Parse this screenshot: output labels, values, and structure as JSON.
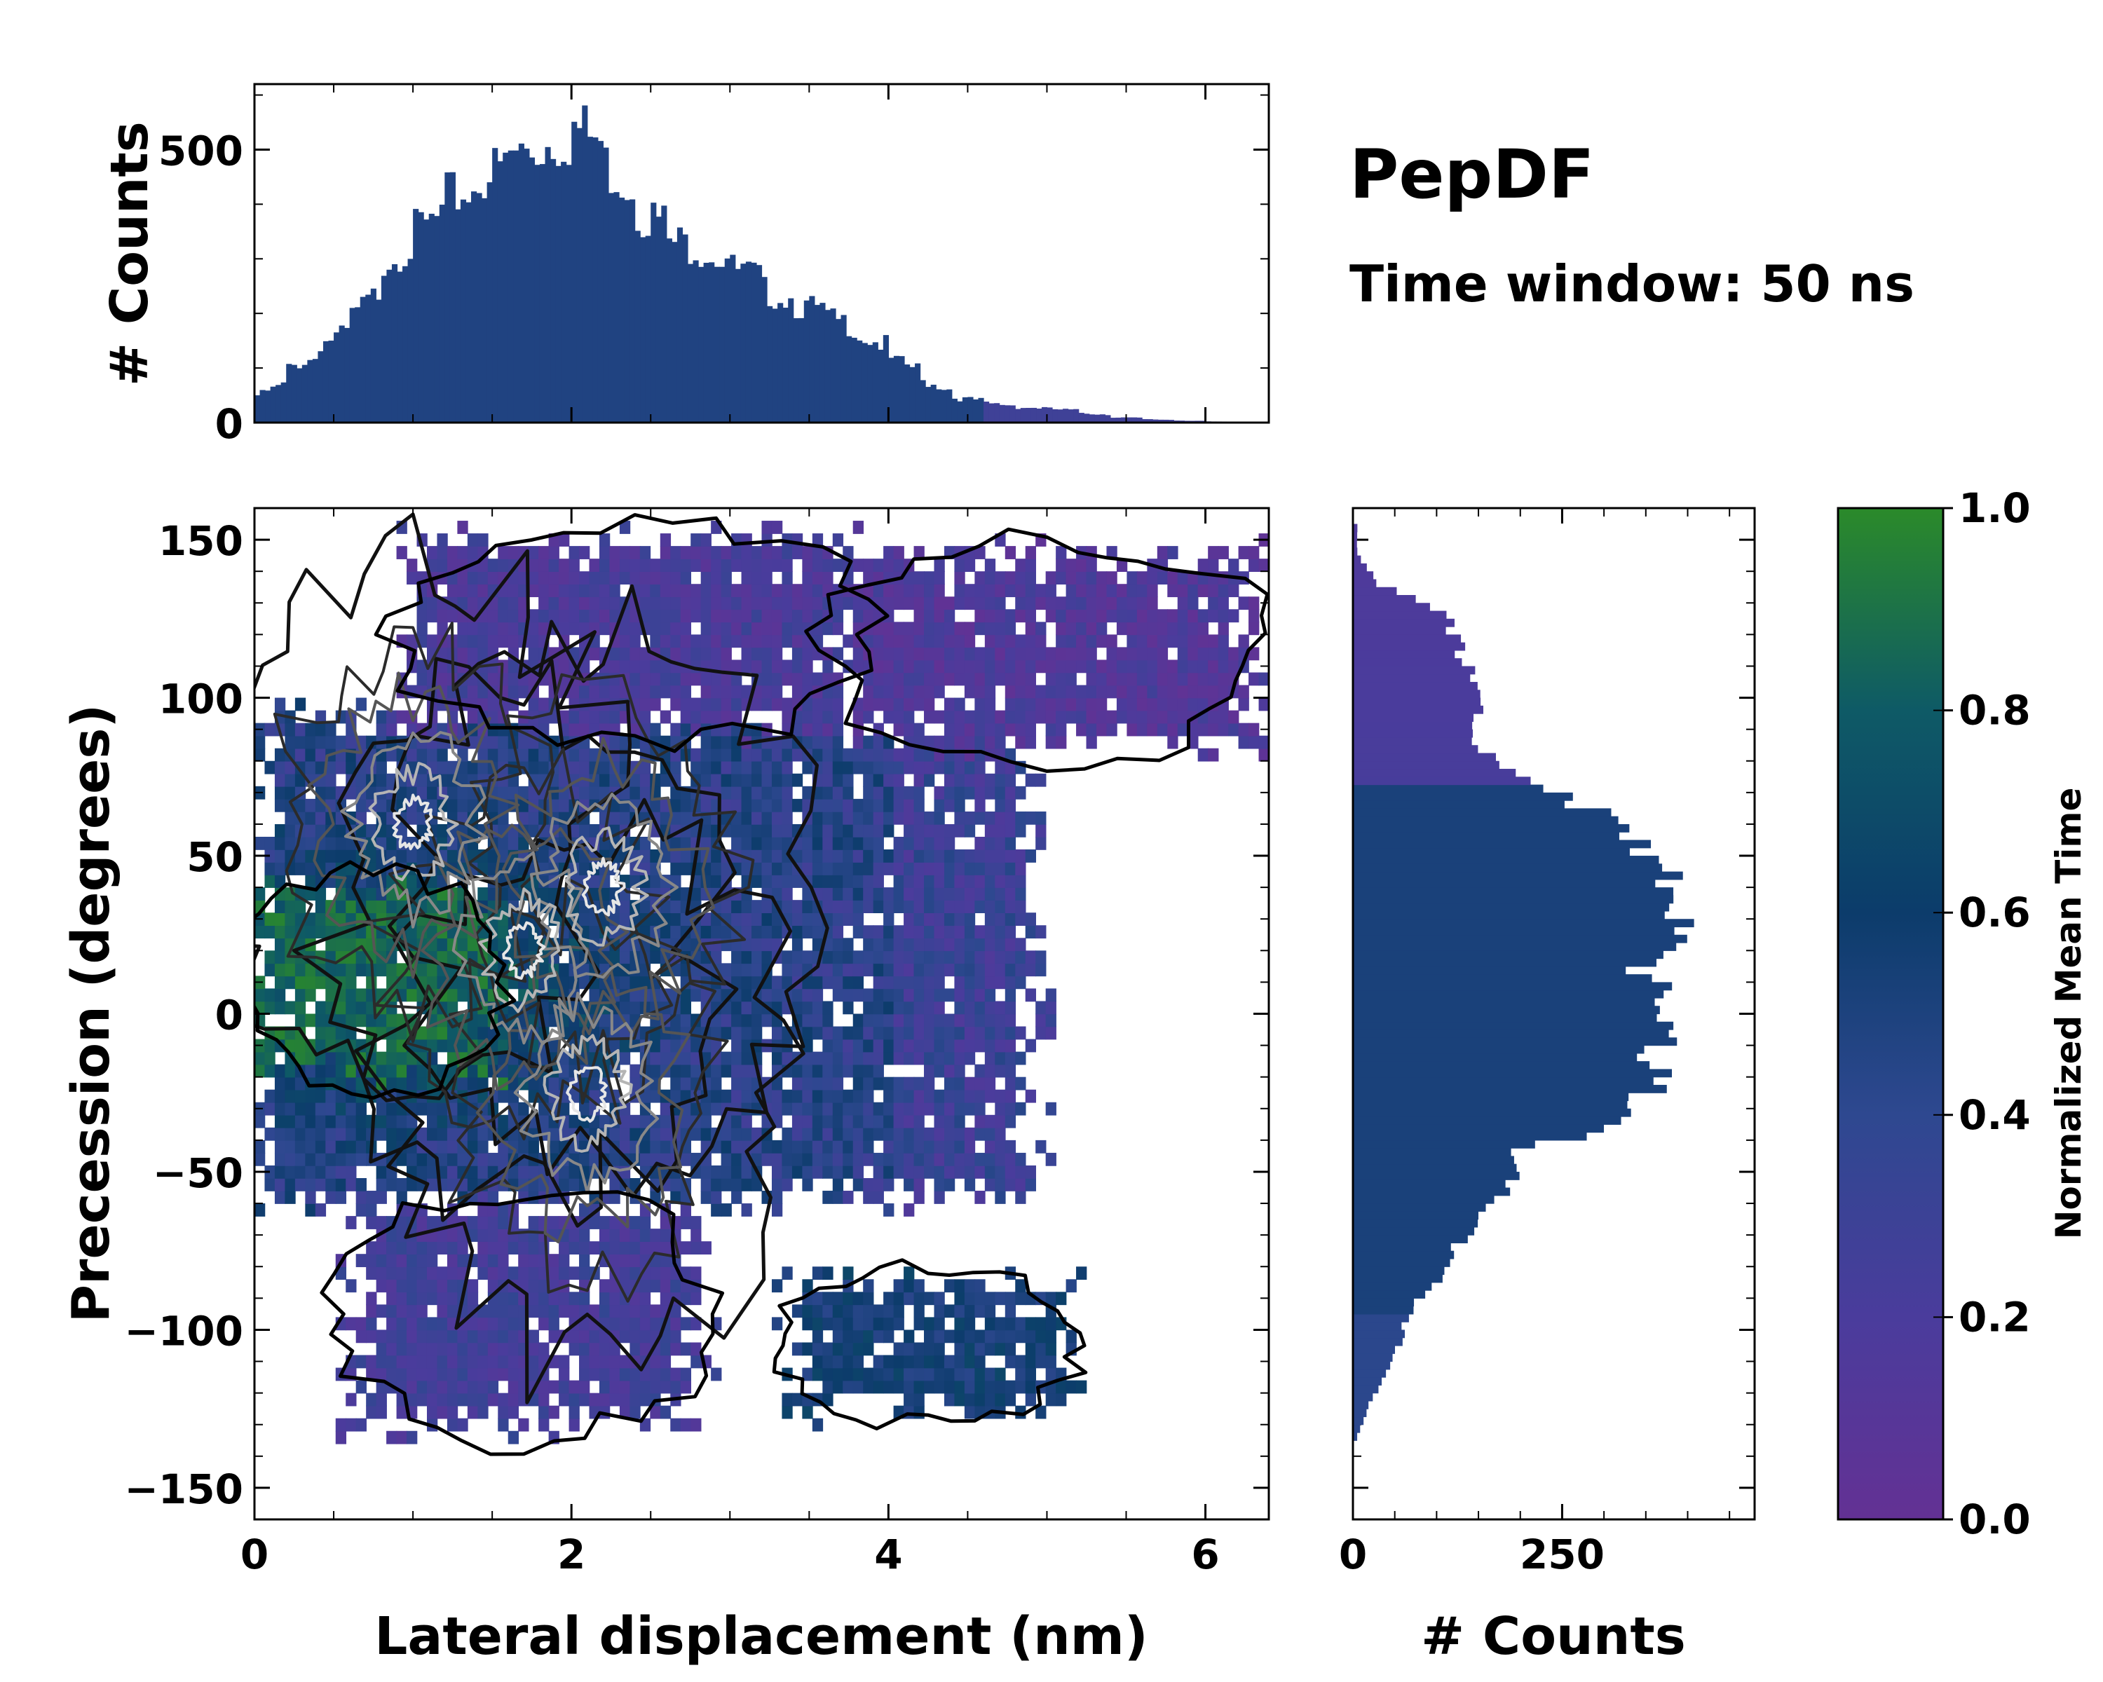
{
  "chart_data": {
    "type": "joint-heatmap-with-marginal-histograms",
    "title": "PepDF",
    "subtitle": "Time window: 50 ns",
    "main": {
      "type": "heatmap",
      "xlabel": "Lateral displacement (nm)",
      "ylabel": "Precession (degrees)",
      "xlim": [
        0,
        6.4
      ],
      "ylim": [
        -160,
        160
      ],
      "xticks": [
        0,
        2,
        4,
        6
      ],
      "xtick_labels": [
        "0",
        "2",
        "4",
        "6"
      ],
      "yticks": [
        -150,
        -100,
        -50,
        0,
        50,
        100,
        150
      ],
      "ytick_labels": [
        "−150",
        "−100",
        "−50",
        "0",
        "50",
        "100",
        "150"
      ],
      "regions": [
        {
          "x": [
            0.0,
            4.9
          ],
          "y": [
            -60,
            95
          ],
          "mean_time": 0.5,
          "note": "dense core"
        },
        {
          "x": [
            0.0,
            1.5
          ],
          "y": [
            -20,
            40
          ],
          "mean_time": 0.85,
          "note": "green early-region"
        },
        {
          "x": [
            1.0,
            3.8
          ],
          "y": [
            90,
            150
          ],
          "mean_time": 0.2,
          "note": "purple top lobe"
        },
        {
          "x": [
            3.7,
            6.3
          ],
          "y": [
            85,
            145
          ],
          "mean_time": 0.15,
          "note": "purple top-right lobe"
        },
        {
          "x": [
            0.6,
            2.8
          ],
          "y": [
            -130,
            -60
          ],
          "mean_time": 0.25,
          "note": "purple bottom lobe"
        },
        {
          "x": [
            3.4,
            5.1
          ],
          "y": [
            -125,
            -85
          ],
          "mean_time": 0.55,
          "note": "teal bottom-right lobe"
        }
      ],
      "density_peaks": [
        {
          "x": 1.7,
          "y": 20
        },
        {
          "x": 2.1,
          "y": -25
        },
        {
          "x": 2.2,
          "y": 40
        },
        {
          "x": 1.0,
          "y": 60
        }
      ]
    },
    "top_histogram": {
      "type": "bar",
      "ylabel": "# Counts",
      "ylim": [
        0,
        620
      ],
      "yticks": [
        0,
        500
      ],
      "ytick_labels": [
        "0",
        "500"
      ],
      "x": [
        0.1,
        0.3,
        0.5,
        0.7,
        0.9,
        1.1,
        1.3,
        1.5,
        1.7,
        1.9,
        2.1,
        2.3,
        2.5,
        2.7,
        2.9,
        3.1,
        3.3,
        3.5,
        3.7,
        3.9,
        4.1,
        4.3,
        4.5,
        4.7,
        4.9,
        5.1,
        5.3,
        5.5,
        5.7,
        5.9,
        6.1,
        6.3
      ],
      "values": [
        50,
        100,
        145,
        195,
        300,
        350,
        410,
        450,
        490,
        510,
        540,
        470,
        390,
        330,
        320,
        280,
        240,
        215,
        190,
        160,
        115,
        75,
        45,
        35,
        28,
        25,
        18,
        10,
        6,
        4,
        2,
        1
      ]
    },
    "right_histogram": {
      "type": "barh",
      "xlabel": "# Counts",
      "xlim": [
        0,
        480
      ],
      "xticks": [
        0,
        250
      ],
      "xtick_labels": [
        "0",
        "250"
      ],
      "y": [
        -130,
        -120,
        -110,
        -100,
        -90,
        -80,
        -70,
        -60,
        -50,
        -40,
        -30,
        -20,
        -10,
        0,
        10,
        20,
        30,
        40,
        50,
        60,
        70,
        80,
        90,
        100,
        110,
        120,
        130,
        140,
        150
      ],
      "values": [
        5,
        20,
        40,
        55,
        70,
        100,
        120,
        155,
        185,
        200,
        330,
        350,
        360,
        370,
        360,
        350,
        390,
        400,
        380,
        330,
        270,
        200,
        140,
        150,
        140,
        125,
        110,
        30,
        5
      ]
    },
    "colorbar": {
      "label": "Normalized Mean Time",
      "range": [
        0,
        1
      ],
      "ticks": [
        0.0,
        0.2,
        0.4,
        0.6,
        0.8,
        1.0
      ],
      "tick_labels": [
        "0.0",
        "0.2",
        "0.4",
        "0.6",
        "0.8",
        "1.0"
      ],
      "colors": [
        "#633194",
        "#4a3c9c",
        "#2e4890",
        "#0c3c6b",
        "#0e5a66",
        "#2b8a2a"
      ]
    }
  }
}
